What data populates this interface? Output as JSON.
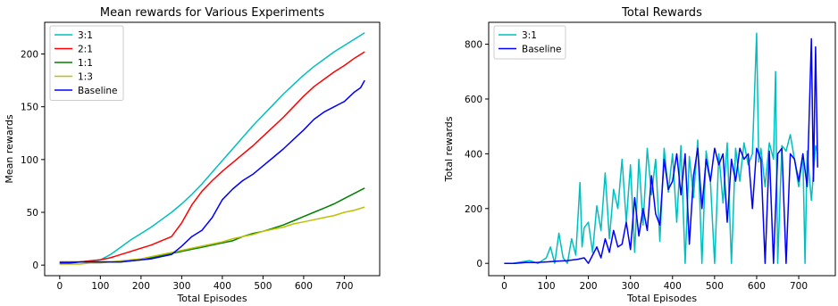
{
  "chart_data": [
    {
      "type": "line",
      "title": "Mean rewards for Various Experiments",
      "xlabel": "Total Episodes",
      "ylabel": "Mean rewards",
      "xlim": [
        -37,
        787
      ],
      "ylim": [
        -10,
        230
      ],
      "xticks": [
        0,
        100,
        200,
        300,
        400,
        500,
        600,
        700
      ],
      "yticks": [
        0,
        50,
        100,
        150,
        200
      ],
      "legend_position": "upper-left",
      "series": [
        {
          "name": "3:1",
          "color": "#00bfbf",
          "x": [
            0,
            25,
            50,
            75,
            100,
            125,
            150,
            175,
            200,
            225,
            250,
            275,
            300,
            325,
            350,
            375,
            400,
            425,
            450,
            475,
            500,
            525,
            550,
            575,
            600,
            625,
            650,
            675,
            700,
            725,
            750
          ],
          "y": [
            1,
            2,
            3,
            4,
            5,
            10,
            17,
            24,
            30,
            36,
            43,
            50,
            58,
            67,
            77,
            88,
            99,
            110,
            121,
            132,
            142,
            152,
            162,
            171,
            180,
            188,
            195,
            202,
            208,
            214,
            220
          ]
        },
        {
          "name": "2:1",
          "color": "#ff0000",
          "x": [
            0,
            25,
            50,
            75,
            100,
            125,
            150,
            175,
            200,
            225,
            250,
            275,
            300,
            325,
            350,
            375,
            400,
            425,
            450,
            475,
            500,
            525,
            550,
            575,
            600,
            625,
            650,
            675,
            700,
            725,
            750
          ],
          "y": [
            3,
            3,
            3,
            4,
            5,
            7,
            10,
            13,
            16,
            19,
            23,
            27,
            40,
            57,
            70,
            80,
            89,
            97,
            105,
            113,
            122,
            131,
            140,
            150,
            160,
            169,
            176,
            183,
            189,
            196,
            202
          ]
        },
        {
          "name": "1:1",
          "color": "#008000",
          "x": [
            0,
            25,
            50,
            75,
            100,
            125,
            150,
            175,
            200,
            225,
            250,
            275,
            300,
            325,
            350,
            375,
            400,
            425,
            450,
            475,
            500,
            525,
            550,
            575,
            600,
            625,
            650,
            675,
            700,
            725,
            750
          ],
          "y": [
            3,
            3,
            3,
            3,
            3,
            3,
            3,
            4,
            5,
            7,
            9,
            11,
            13,
            15,
            17,
            19,
            21,
            23,
            27,
            30,
            32,
            35,
            38,
            42,
            46,
            50,
            54,
            58,
            63,
            68,
            73
          ]
        },
        {
          "name": "1:3",
          "color": "#bfbf00",
          "x": [
            0,
            25,
            50,
            75,
            100,
            125,
            150,
            175,
            200,
            225,
            250,
            275,
            300,
            325,
            350,
            375,
            400,
            425,
            450,
            475,
            500,
            525,
            550,
            575,
            600,
            625,
            650,
            675,
            700,
            725,
            750
          ],
          "y": [
            1,
            1,
            1,
            2,
            2,
            3,
            4,
            5,
            6,
            8,
            10,
            12,
            14,
            16,
            18,
            20,
            22,
            25,
            27,
            29,
            32,
            34,
            36,
            39,
            41,
            43,
            45,
            47,
            50,
            52,
            55
          ]
        },
        {
          "name": "Baseline",
          "color": "#0000ff",
          "x": [
            0,
            25,
            50,
            75,
            100,
            125,
            150,
            175,
            200,
            225,
            250,
            275,
            300,
            325,
            350,
            375,
            400,
            425,
            450,
            475,
            500,
            525,
            550,
            575,
            600,
            625,
            650,
            675,
            700,
            725,
            740,
            750
          ],
          "y": [
            2,
            2,
            3,
            3,
            3,
            3,
            3,
            4,
            5,
            6,
            8,
            10,
            18,
            27,
            33,
            45,
            62,
            72,
            80,
            86,
            94,
            102,
            110,
            119,
            128,
            138,
            145,
            150,
            155,
            164,
            168,
            175
          ]
        }
      ]
    },
    {
      "type": "line",
      "title": "Total Rewards",
      "xlabel": "Total Episodes",
      "ylabel": "Total rewards",
      "xlim": [
        -37,
        787
      ],
      "ylim": [
        -45,
        880
      ],
      "xticks": [
        0,
        100,
        200,
        300,
        400,
        500,
        600,
        700
      ],
      "yticks": [
        0,
        200,
        400,
        600,
        800
      ],
      "legend_position": "upper-left",
      "series": [
        {
          "name": "3:1",
          "color": "#00bfbf",
          "x": [
            0,
            20,
            40,
            60,
            80,
            100,
            110,
            120,
            130,
            140,
            150,
            160,
            170,
            180,
            185,
            190,
            200,
            210,
            220,
            230,
            240,
            250,
            260,
            270,
            280,
            290,
            300,
            310,
            320,
            330,
            340,
            350,
            360,
            370,
            380,
            390,
            400,
            410,
            420,
            430,
            440,
            450,
            460,
            470,
            480,
            490,
            500,
            510,
            520,
            530,
            540,
            550,
            560,
            570,
            580,
            590,
            600,
            605,
            610,
            620,
            630,
            640,
            645,
            650,
            660,
            670,
            680,
            690,
            700,
            710,
            715,
            720,
            730,
            740,
            745
          ],
          "y": [
            0,
            0,
            5,
            10,
            0,
            20,
            60,
            0,
            110,
            20,
            0,
            90,
            30,
            295,
            60,
            130,
            150,
            40,
            210,
            120,
            330,
            90,
            270,
            200,
            380,
            150,
            360,
            40,
            380,
            140,
            420,
            250,
            380,
            80,
            420,
            260,
            400,
            150,
            430,
            0,
            390,
            240,
            450,
            0,
            410,
            300,
            0,
            400,
            220,
            440,
            0,
            420,
            300,
            440,
            360,
            400,
            840,
            370,
            420,
            280,
            440,
            380,
            700,
            0,
            430,
            410,
            470,
            380,
            280,
            400,
            0,
            410,
            230,
            430,
            400
          ]
        },
        {
          "name": "Baseline",
          "color": "#0000ff",
          "x": [
            0,
            25,
            50,
            75,
            100,
            125,
            150,
            175,
            190,
            200,
            210,
            220,
            230,
            240,
            250,
            260,
            270,
            280,
            290,
            300,
            310,
            320,
            330,
            340,
            350,
            360,
            370,
            380,
            390,
            400,
            410,
            420,
            430,
            440,
            450,
            460,
            470,
            480,
            490,
            500,
            510,
            520,
            530,
            540,
            550,
            560,
            570,
            580,
            590,
            600,
            610,
            620,
            630,
            640,
            650,
            660,
            670,
            680,
            690,
            700,
            710,
            720,
            730,
            735,
            740,
            745
          ],
          "y": [
            0,
            0,
            3,
            3,
            5,
            8,
            10,
            15,
            20,
            0,
            30,
            60,
            20,
            90,
            40,
            120,
            60,
            70,
            150,
            50,
            240,
            100,
            200,
            120,
            320,
            180,
            140,
            380,
            270,
            300,
            400,
            250,
            400,
            70,
            320,
            420,
            200,
            380,
            300,
            420,
            360,
            400,
            150,
            380,
            300,
            420,
            380,
            400,
            200,
            420,
            380,
            0,
            410,
            0,
            400,
            420,
            0,
            400,
            380,
            300,
            400,
            280,
            820,
            300,
            790,
            350
          ]
        }
      ]
    }
  ]
}
